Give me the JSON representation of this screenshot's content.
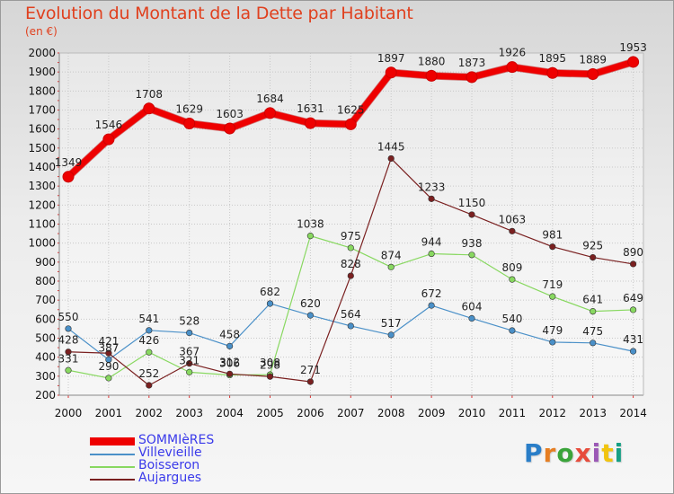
{
  "title": "Evolution du Montant de la Dette par Habitant",
  "subtitle": "(en €)",
  "logo_text": "Proxiti",
  "chart_data": {
    "type": "line",
    "categories": [
      "2000",
      "2001",
      "2002",
      "2003",
      "2004",
      "2005",
      "2006",
      "2007",
      "2008",
      "2009",
      "2010",
      "2011",
      "2012",
      "2013",
      "2014"
    ],
    "ylim": [
      200,
      2000
    ],
    "yticks": [
      200,
      300,
      400,
      500,
      600,
      700,
      800,
      900,
      1000,
      1100,
      1200,
      1300,
      1400,
      1500,
      1600,
      1700,
      1800,
      1900,
      2000
    ],
    "grid": true,
    "legend_position": "bottom-left",
    "series": [
      {
        "name": "SOMMIèRES",
        "color": "#ee0000",
        "values": [
          1349,
          1546,
          1708,
          1629,
          1603,
          1684,
          1631,
          1625,
          1897,
          1880,
          1873,
          1926,
          1895,
          1889,
          1953
        ]
      },
      {
        "name": "Villevieille",
        "color": "#4a90c8",
        "values": [
          550,
          387,
          541,
          528,
          458,
          682,
          620,
          564,
          517,
          672,
          604,
          540,
          479,
          475,
          431
        ]
      },
      {
        "name": "Boisseron",
        "color": "#88d860",
        "values": [
          331,
          290,
          426,
          321,
          306,
          308,
          1038,
          975,
          874,
          944,
          938,
          809,
          719,
          641,
          649
        ]
      },
      {
        "name": "Aujargues",
        "color": "#7a2020",
        "values": [
          428,
          421,
          252,
          367,
          312,
          298,
          271,
          828,
          1445,
          1233,
          1150,
          1063,
          981,
          925,
          890
        ]
      }
    ]
  }
}
